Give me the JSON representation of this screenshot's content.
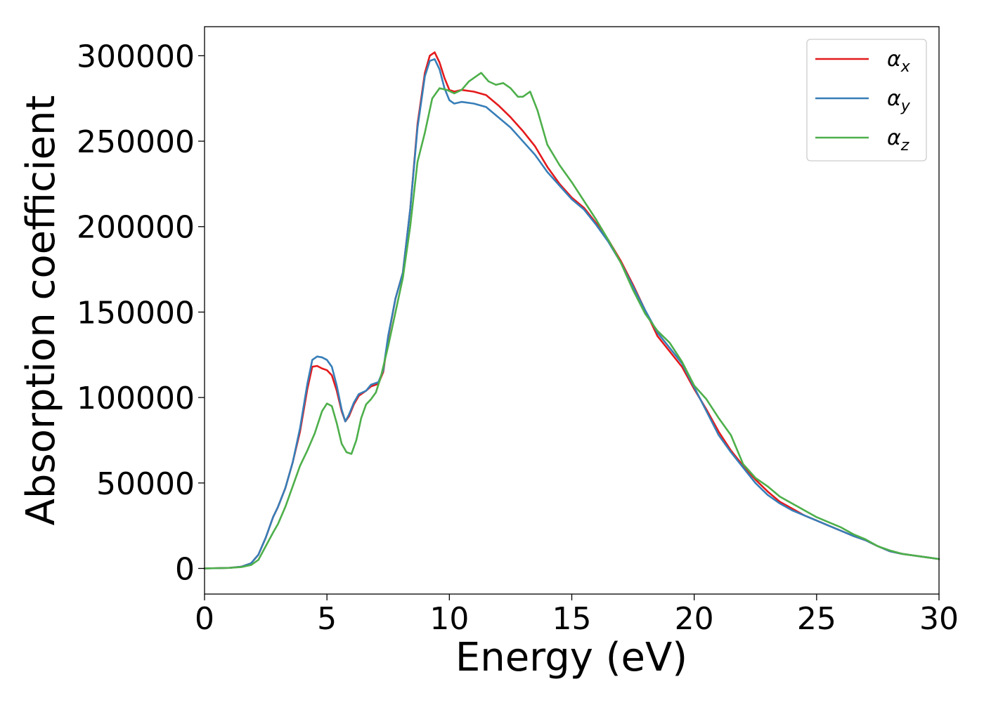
{
  "chart_data": {
    "type": "line",
    "title": "",
    "xlabel": "Energy (eV)",
    "ylabel": "Absorption coefficient",
    "xlim": [
      0,
      30
    ],
    "ylim": [
      -15000,
      317000
    ],
    "xticks": [
      0,
      5,
      10,
      15,
      20,
      25,
      30
    ],
    "xtick_labels": [
      "0",
      "5",
      "10",
      "15",
      "20",
      "25",
      "30"
    ],
    "yticks": [
      0,
      50000,
      100000,
      150000,
      200000,
      250000,
      300000
    ],
    "ytick_labels": [
      "0",
      "50000",
      "100000",
      "150000",
      "200000",
      "250000",
      "300000"
    ],
    "grid": false,
    "legend_position": "top-right",
    "colors": {
      "alpha_x": "#e41a1c",
      "alpha_y": "#377eb8",
      "alpha_z": "#4daf4a"
    },
    "series": [
      {
        "name": "αx",
        "legend_base": "α",
        "legend_sub": "x",
        "color": "#e41a1c",
        "x": [
          0,
          1,
          1.5,
          1.9,
          2.2,
          2.5,
          2.8,
          3.0,
          3.3,
          3.6,
          3.9,
          4.2,
          4.4,
          4.6,
          4.8,
          5.0,
          5.2,
          5.4,
          5.6,
          5.75,
          5.9,
          6.1,
          6.3,
          6.6,
          6.8,
          7.1,
          7.3,
          7.5,
          7.8,
          8.1,
          8.4,
          8.7,
          9.0,
          9.2,
          9.4,
          9.6,
          9.8,
          10.0,
          10.2,
          10.5,
          11.0,
          11.5,
          12.0,
          12.5,
          13.0,
          13.5,
          14.0,
          14.5,
          15.0,
          15.5,
          16.0,
          16.5,
          17.0,
          17.5,
          18.0,
          18.5,
          19.0,
          19.5,
          20.0,
          20.5,
          21.0,
          21.5,
          22.0,
          22.5,
          23.0,
          23.5,
          24.0,
          24.5,
          25.0,
          25.5,
          26.0,
          26.5,
          27.0,
          27.5,
          28.0,
          28.5,
          29.0,
          29.5,
          30.0
        ],
        "values": [
          0,
          300,
          1000,
          3000,
          8000,
          18000,
          30000,
          36000,
          47000,
          62000,
          80000,
          105000,
          118000,
          118500,
          117000,
          116000,
          113000,
          104000,
          92000,
          86000,
          89000,
          96000,
          101000,
          104000,
          106500,
          108000,
          115000,
          135000,
          158000,
          173000,
          210000,
          260000,
          290000,
          300000,
          302000,
          296000,
          287000,
          280000,
          279000,
          280000,
          279000,
          277000,
          271000,
          264000,
          256000,
          247000,
          235000,
          225000,
          217000,
          211000,
          202000,
          192000,
          180000,
          166000,
          151000,
          136000,
          127000,
          118000,
          105000,
          93000,
          80000,
          69000,
          60000,
          52000,
          45000,
          39000,
          35000,
          31000,
          28000,
          25000,
          22000,
          19000,
          16500,
          13000,
          10000,
          8500,
          7500,
          6500,
          5500
        ]
      },
      {
        "name": "αy",
        "legend_base": "α",
        "legend_sub": "y",
        "color": "#377eb8",
        "x": [
          0,
          1,
          1.5,
          1.9,
          2.2,
          2.5,
          2.8,
          3.0,
          3.3,
          3.6,
          3.9,
          4.2,
          4.4,
          4.6,
          4.8,
          5.0,
          5.2,
          5.4,
          5.6,
          5.75,
          5.9,
          6.1,
          6.3,
          6.6,
          6.8,
          7.1,
          7.3,
          7.5,
          7.8,
          8.1,
          8.4,
          8.7,
          9.0,
          9.2,
          9.4,
          9.6,
          9.8,
          10.0,
          10.2,
          10.5,
          11.0,
          11.5,
          12.0,
          12.5,
          13.0,
          13.5,
          14.0,
          14.5,
          15.0,
          15.5,
          16.0,
          16.5,
          17.0,
          17.5,
          18.0,
          18.5,
          19.0,
          19.5,
          20.0,
          20.5,
          21.0,
          21.5,
          22.0,
          22.5,
          23.0,
          23.5,
          24.0,
          24.5,
          25.0,
          25.5,
          26.0,
          26.5,
          27.0,
          27.5,
          28.0,
          28.5,
          29.0,
          29.5,
          30.0
        ],
        "values": [
          0,
          300,
          1000,
          3000,
          8000,
          18000,
          30000,
          36000,
          47000,
          62000,
          82000,
          108000,
          122000,
          124000,
          123500,
          122000,
          118000,
          107000,
          93000,
          86000,
          90000,
          97000,
          102000,
          104000,
          107500,
          109000,
          116000,
          136000,
          158000,
          173000,
          210000,
          258000,
          288000,
          297000,
          298000,
          292000,
          281000,
          274000,
          272000,
          273000,
          272000,
          270000,
          264000,
          258000,
          250000,
          242000,
          232000,
          224000,
          216000,
          210000,
          201000,
          191000,
          179000,
          165000,
          151000,
          138000,
          129000,
          120000,
          106000,
          92000,
          78000,
          68000,
          59000,
          50000,
          43000,
          38000,
          34000,
          31000,
          28000,
          25000,
          22000,
          19000,
          16500,
          13000,
          10000,
          8500,
          7500,
          6500,
          5500
        ]
      },
      {
        "name": "αz",
        "legend_base": "α",
        "legend_sub": "z",
        "color": "#4daf4a",
        "x": [
          0,
          1,
          1.5,
          1.9,
          2.2,
          2.5,
          2.8,
          3.0,
          3.3,
          3.6,
          3.9,
          4.2,
          4.5,
          4.8,
          5.0,
          5.2,
          5.4,
          5.6,
          5.8,
          6.0,
          6.2,
          6.4,
          6.6,
          6.8,
          7.0,
          7.2,
          7.5,
          7.8,
          8.1,
          8.4,
          8.7,
          9.0,
          9.3,
          9.6,
          9.9,
          10.2,
          10.5,
          10.8,
          11.1,
          11.3,
          11.6,
          11.9,
          12.2,
          12.5,
          12.8,
          13.0,
          13.3,
          13.6,
          14.0,
          14.5,
          15.0,
          15.5,
          16.0,
          16.5,
          17.0,
          17.5,
          18.0,
          18.5,
          19.0,
          19.5,
          20.0,
          20.5,
          21.0,
          21.5,
          22.0,
          22.5,
          23.0,
          23.5,
          24.0,
          24.5,
          25.0,
          25.5,
          26.0,
          26.5,
          27.0,
          27.5,
          28.0,
          28.5,
          29.0,
          29.5,
          30.0
        ],
        "values": [
          0,
          300,
          800,
          2000,
          5000,
          13000,
          21000,
          26000,
          36000,
          48000,
          60000,
          69000,
          79000,
          92000,
          96500,
          95000,
          85000,
          73000,
          68000,
          67000,
          75000,
          88000,
          96000,
          99000,
          103000,
          112000,
          130000,
          150000,
          170000,
          200000,
          238000,
          255000,
          275000,
          281000,
          280000,
          278000,
          280000,
          285000,
          288000,
          290000,
          285000,
          283000,
          284000,
          281000,
          276000,
          276000,
          279000,
          268000,
          248000,
          236000,
          226000,
          215000,
          204000,
          192000,
          179000,
          163000,
          149000,
          139000,
          132000,
          121000,
          107000,
          99000,
          88000,
          78000,
          61000,
          53000,
          48000,
          42000,
          38000,
          34000,
          30000,
          27000,
          24000,
          20000,
          17000,
          13000,
          10500,
          8500,
          7500,
          6500,
          5500
        ]
      }
    ]
  }
}
